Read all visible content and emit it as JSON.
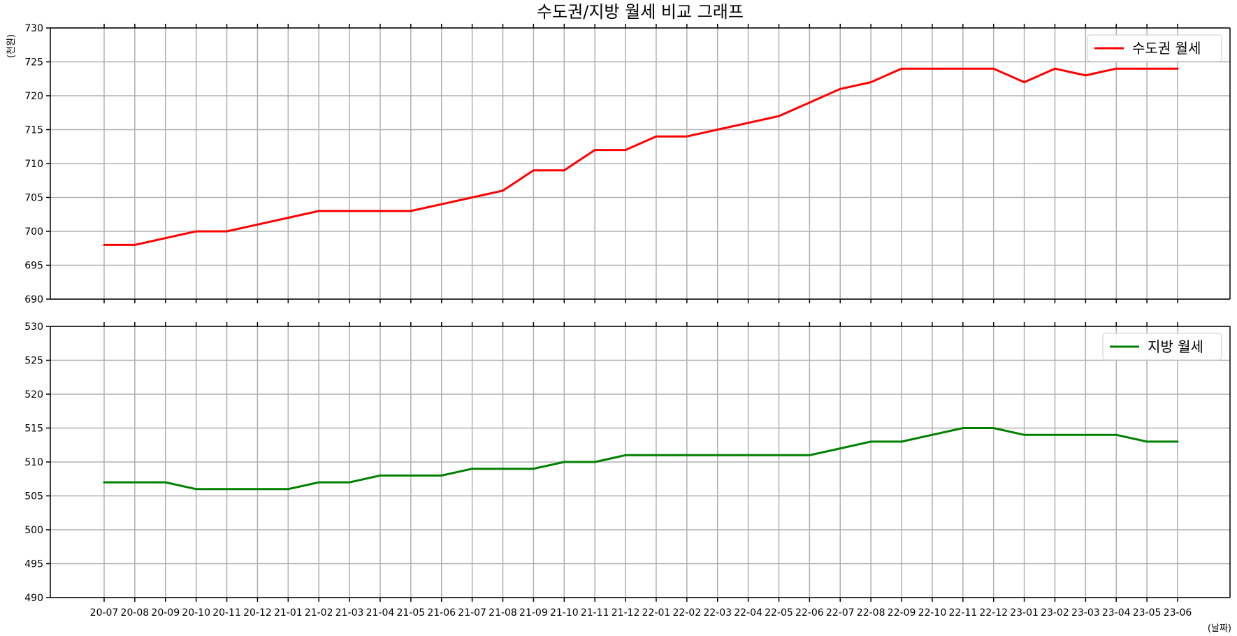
{
  "chart_data": {
    "type": "line",
    "title": "수도권/지방 월세 비교 그래프",
    "ylabel": "(천원)",
    "xlabel": "(날짜)",
    "categories": [
      "20-07",
      "20-08",
      "20-09",
      "20-10",
      "20-11",
      "20-12",
      "21-01",
      "21-02",
      "21-03",
      "21-04",
      "21-05",
      "21-06",
      "21-07",
      "21-08",
      "21-09",
      "21-10",
      "21-11",
      "21-12",
      "22-01",
      "22-02",
      "22-03",
      "22-04",
      "22-05",
      "22-06",
      "22-07",
      "22-08",
      "22-09",
      "22-10",
      "22-11",
      "22-12",
      "23-01",
      "23-02",
      "23-03",
      "23-04",
      "23-05",
      "23-06"
    ],
    "grid": true,
    "panels": [
      {
        "name": "수도권 월세",
        "color": "#ff0000",
        "legend": "top-right",
        "ylim": [
          690,
          730
        ],
        "yticks": [
          690,
          695,
          700,
          705,
          710,
          715,
          720,
          725,
          730
        ],
        "values": [
          698,
          698,
          699,
          700,
          700,
          701,
          702,
          703,
          703,
          703,
          703,
          704,
          705,
          706,
          709,
          709,
          712,
          712,
          714,
          714,
          715,
          716,
          717,
          719,
          721,
          722,
          724,
          724,
          724,
          724,
          722,
          724,
          723,
          724,
          724,
          724
        ]
      },
      {
        "name": "지방 월세",
        "color": "#008000",
        "legend": "top-right",
        "ylim": [
          490,
          530
        ],
        "yticks": [
          490,
          495,
          500,
          505,
          510,
          515,
          520,
          525,
          530
        ],
        "values": [
          507,
          507,
          507,
          506,
          506,
          506,
          506,
          507,
          507,
          508,
          508,
          508,
          509,
          509,
          509,
          510,
          510,
          511,
          511,
          511,
          511,
          511,
          511,
          511,
          512,
          513,
          513,
          514,
          515,
          515,
          514,
          514,
          514,
          514,
          513,
          513
        ]
      }
    ]
  }
}
